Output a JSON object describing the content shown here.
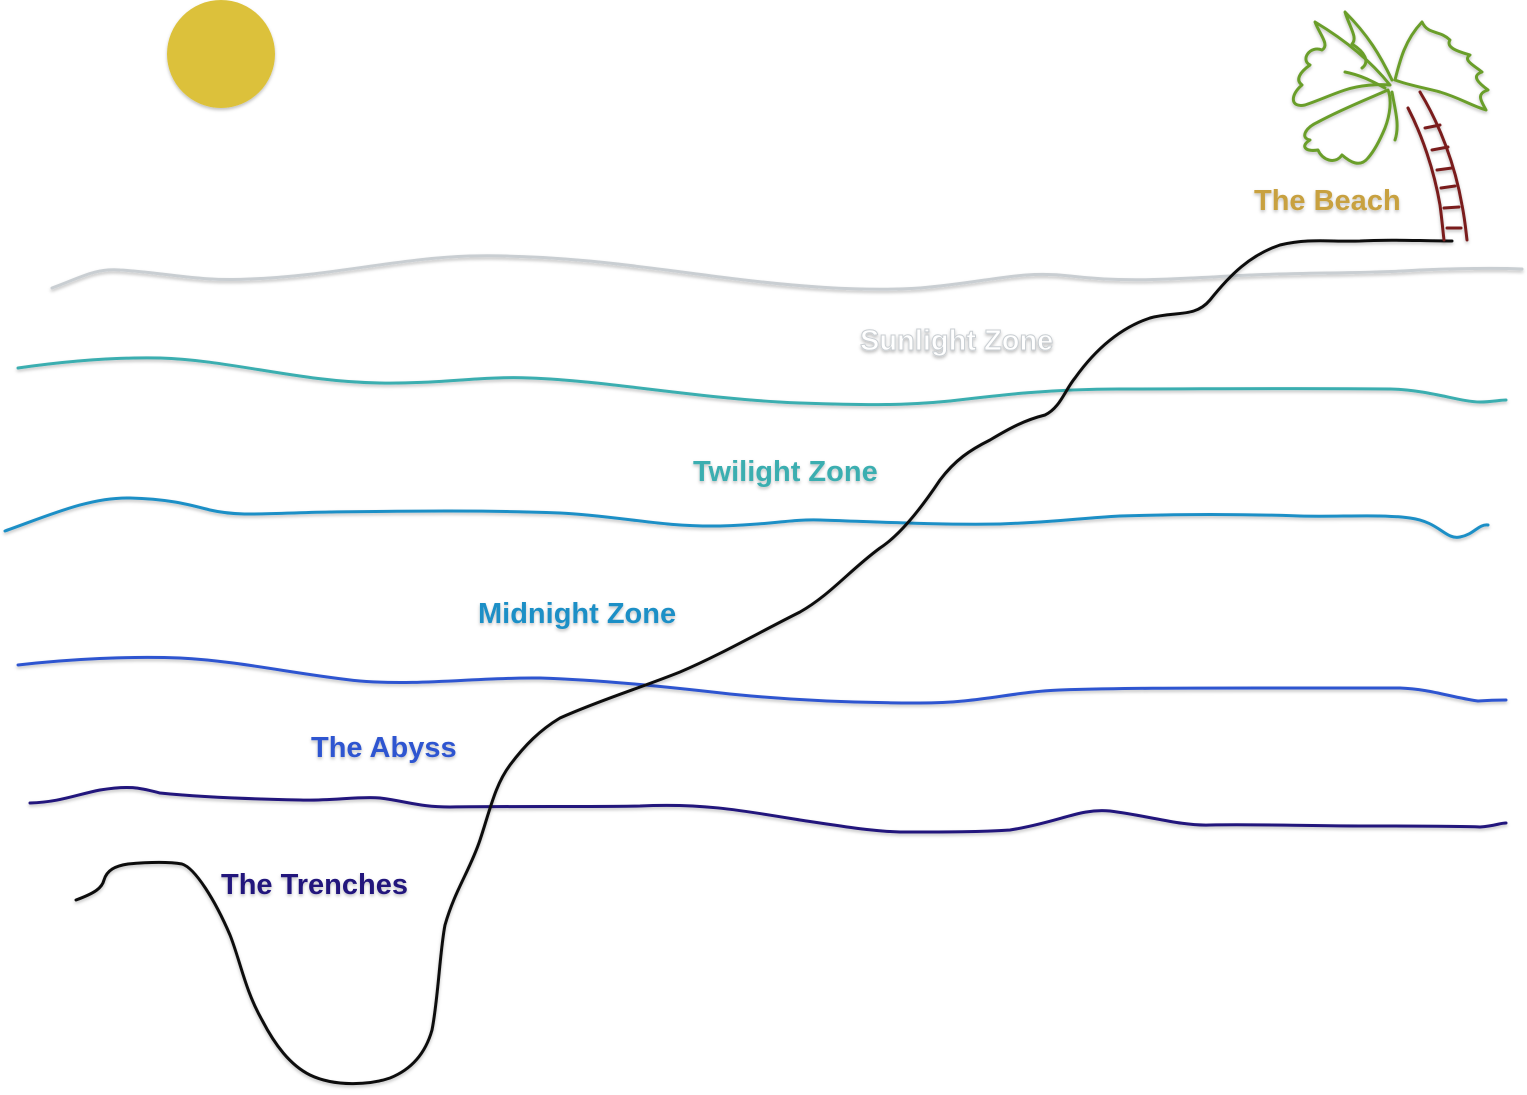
{
  "labels": {
    "beach": "The Beach",
    "sunlight": "Sunlight Zone",
    "twilight": "Twilight Zone",
    "midnight": "Midnight Zone",
    "abyss": "The Abyss",
    "trenches": "The Trenches"
  },
  "colors": {
    "sun": "#dcc13a",
    "beach": "#c8a13f",
    "palm_leaves": "#6a9e2c",
    "palm_trunk": "#7a1f1f",
    "sunlight": "#c9ced2",
    "twilight": "#3aaeb0",
    "midnight": "#1f8fc6",
    "abyss": "#2f55d0",
    "trenches": "#20137c",
    "seafloor": "#111111"
  },
  "icons": {
    "sun": "sun-icon",
    "palm": "palm-tree-icon"
  }
}
